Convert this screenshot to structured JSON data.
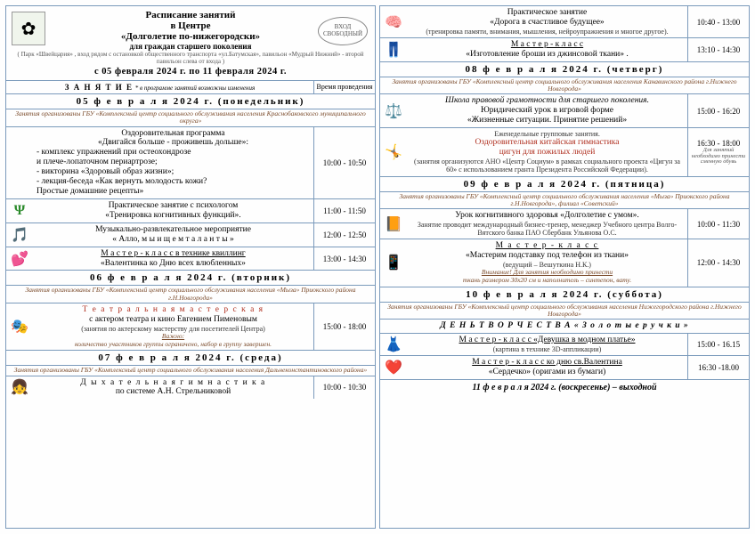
{
  "header": {
    "line1": "Расписание занятий",
    "line2": "в Центре",
    "line3": "«Долголетие по-нижегородски»",
    "line4": "для граждан старшего поколения",
    "line5": "( Парк «Швейцария» , вход рядом с остановкой общественного транспорта «ул.Батумская», павильон «Мудрый Нижний» - второй павильон слева от входа )",
    "range": "с 05 февраля 2024 г. по 11 февраля 2024 г.",
    "badge": "ВХОД СВОБОДНЫЙ",
    "th_lesson": "З А Н Я Т И Е",
    "th_lesson_note": "* в программе занятий возможны изменения",
    "th_time": "Время проведения"
  },
  "d05": {
    "title": "05  ф е в р а л я  2024 г. (понедельник)",
    "org": "Занятия организованы ГБУ «Комплексный центр социального обслуживания населения Краснобаковского муниципального округа»",
    "e1": {
      "title": "Оздоровительная программа",
      "title2": "«Двигайся больше - проживешь дольше»:",
      "l1": "- комплекс упражнений при остеохондрозе",
      "l2": "  и плече-лопаточном периартрозе;",
      "l3": "- викторина «Здоровый образ жизни»;",
      "l4": "- лекция-беседа «Как вернуть молодость кожи?",
      "l5": "  Простые домашние рецепты»",
      "time": "10:00 - 10:50"
    },
    "e2": {
      "title": "Практическое занятие с психологом",
      "title2": "«Тренировка когнитивных функций».",
      "time": "11:00 - 11:50"
    },
    "e3": {
      "title": "Музыкально-развлекательное мероприятие",
      "title2": "« Алло, м ы  и щ е м  т а л а н т ы »",
      "time": "12:00 - 12:50"
    },
    "e4": {
      "title": "М а с т е р - к л а с с  в технике квиллинг",
      "title2": "«Валентинка ко Дню всех влюбленных»",
      "time": "13:00 - 14:30"
    }
  },
  "d06": {
    "title": "06  ф е в р а л я  2024 г. (вторник)",
    "org": "Занятия организованы ГБУ «Комплексный центр социального обслуживания населения «Мыза» Приокского района г.Н.Новгорода»",
    "e1": {
      "title": "Т е а т р а л ь н а я   м а с т е р с к а я",
      "title2": "с актером театра и кино Евгением Пименовым",
      "sub": "(занятия по актерскому мастерству для посетителей Центра)",
      "note1": "Важно:",
      "note2": "количество участников группы ограничено, набор в группу завершен.",
      "time": "15:00 - 18:00"
    }
  },
  "d07": {
    "title": "07  ф е в р а л я  2024 г. (среда)",
    "org": "Занятия организованы ГБУ «Комплексный центр социального обслуживания населения Дальнеконстантиновского района»",
    "e1": {
      "title": "Д ы х а т е л ь н а я   г и м н а с т и к а",
      "title2": "по системе А.Н. Стрельниковой",
      "time": "10:00 - 10:30"
    },
    "e2": {
      "title": "Практическое занятие",
      "title2": "«Дорога в счастливое будущее»",
      "sub": "(тренировка памяти, внимания, мышления, нейроупражнения и многое другое).",
      "time": "10:40 - 13:00"
    },
    "e3": {
      "title": "М а с т е р - к л а с с",
      "title2": "«Изготовление броши из джинсовой ткани» .",
      "time": "13:10 - 14:30"
    }
  },
  "d08": {
    "title": "08  ф е в р а л я  2024 г. (четверг)",
    "org": "Занятия организованы ГБУ «Комплексный центр социального обслуживания населения Канавинского района г.Нижнего Новгорода»",
    "e1": {
      "pre": "Школа правовой грамотности для старшего поколения.",
      "title": "Юридический урок в игровой форме",
      "title2": "«Жизненные ситуации. Принятие решений»",
      "time": "15:00 - 16:20"
    },
    "e2": {
      "pre": "Еженедельные групповые занятия.",
      "title": "Оздоровительная китайская гимнастика",
      "title2": "цигун для пожилых людей",
      "sub": "(занятия организуются АНО «Центр Социум» в рамках социального проекта «Цигун за 60» с использованием гранта Президента Российской Федерации).",
      "time": "16:30 - 18:00",
      "tnote": "Для занятий необходимо принести сменную обувь"
    }
  },
  "d09": {
    "title": "09  ф е в р а л я  2024 г. (пятница)",
    "org": "Занятия организованы ГБУ «Комплексный центр социального обслуживания населения «Мыза» Приокского района г.Н.Новгорода», филиал «Советский»",
    "e1": {
      "title": "Урок когнитивного здоровья «Долголетие с умом».",
      "sub": "Занятие проводит международный бизнес-тренер, менеджер Учебного центра Волго-Вятского банка ПАО Сбербанк Ульянова О.С.",
      "time": "10:00 - 11:30"
    },
    "e2": {
      "title": "М а с т е р - к л а с с",
      "title2": "«Мастерим подставку под телефон из ткани»",
      "sub": "(ведущий – Вешуткина Н.К.)",
      "note1": "Внимание! Для занятия необходимо принести",
      "note2": "ткань размером 30х20 см и наполнитель – синтепон, вату.",
      "time": "12:00 - 14:30"
    }
  },
  "d10": {
    "title": "10  ф е в р а л я  2024 г. (суббота)",
    "org": "Занятия организованы ГБУ «Комплексный центр социального обслуживания населения Нижегородского района г.Нижнего Новгорода»",
    "banner": "Д Е Н Ь  Т В О Р Ч Е С Т В А  « З о л о т ы е   р у ч к и »",
    "e1": {
      "title": "М а с т е р - к л а с с «Девушка в модном платье»",
      "sub": "(картина в технике 3D-аппликации)",
      "time": "15:00 - 16.15"
    },
    "e2": {
      "title": "М а с т е р - к л а с с  ко дню св.Валентина",
      "title2": "«Сердечко» (оригами из бумаги)",
      "time": "16:30 -18.00"
    }
  },
  "d11": {
    "title": "11  ф е в р а л я  2024 г. (воскресенье) – выходной"
  },
  "icons": {
    "flower": "✿",
    "psi": "Ψ",
    "music": "🎵",
    "hearts": "💕",
    "masks": "🎭",
    "girl": "👧",
    "brain": "🧠",
    "pants": "👖",
    "scales": "⚖️",
    "people": "🤸",
    "book": "📙",
    "phone": "📱",
    "doll": "👗",
    "heart": "❤️"
  }
}
